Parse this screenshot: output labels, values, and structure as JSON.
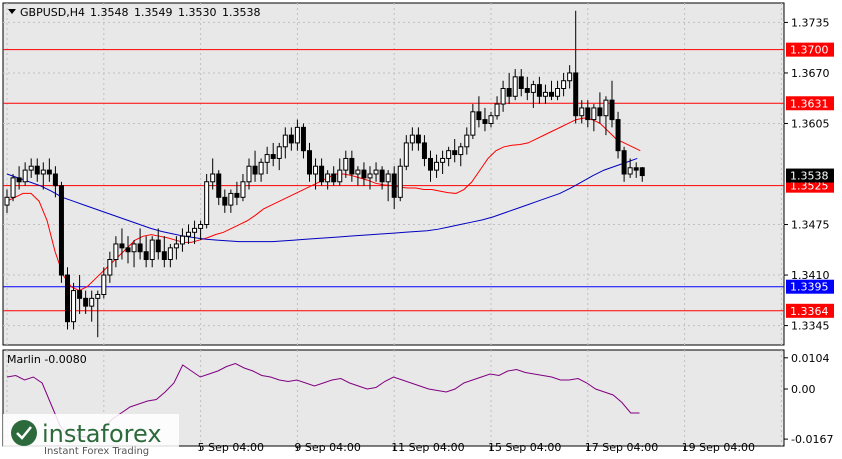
{
  "header": {
    "symbol_label": "GBPUSD,H4",
    "ohlc": [
      "1.3548",
      "1.3549",
      "1.3530",
      "1.3538"
    ]
  },
  "indicator": {
    "label": "Marlin -0.0080"
  },
  "watermark": {
    "brand": "instaforex",
    "tagline": "Instant Forex Trading"
  },
  "colors": {
    "background": "#e8e8e8",
    "bull": "#ffffff",
    "bear": "#000000",
    "red_level": "#ff0000",
    "blue_level": "#0000ff",
    "ma_fast": "#ff0000",
    "ma_slow": "#0000c0",
    "marlin": "#800080"
  },
  "chart_data": {
    "type": "candlestick",
    "x_tick_labels": [
      "5 Sep 04:00",
      "9 Sep 04:00",
      "11 Sep 04:00",
      "15 Sep 04:00",
      "17 Sep 04:00",
      "19 Sep 04:00"
    ],
    "x_tick_index": [
      32,
      48,
      64,
      80,
      96,
      112
    ],
    "y_ticks": [
      1.3735,
      1.367,
      1.3605,
      1.3475,
      1.341,
      1.3345
    ],
    "ylim": [
      1.332,
      1.376
    ],
    "levels": [
      {
        "value": 1.37,
        "label": "1.3700",
        "color": "red"
      },
      {
        "value": 1.3631,
        "label": "1.3631",
        "color": "red"
      },
      {
        "value": 1.3525,
        "label": "1.3525",
        "color": "red"
      },
      {
        "value": 1.3395,
        "label": "1.3395",
        "color": "blue"
      },
      {
        "value": 1.3364,
        "label": "1.3364",
        "color": "red"
      }
    ],
    "current_price": {
      "value": 1.3538,
      "label": "1.3538"
    },
    "candles": [
      [
        1.35,
        1.352,
        1.349,
        1.351
      ],
      [
        1.351,
        1.354,
        1.3505,
        1.3535
      ],
      [
        1.3535,
        1.355,
        1.352,
        1.353
      ],
      [
        1.353,
        1.3555,
        1.3525,
        1.3545
      ],
      [
        1.3545,
        1.356,
        1.3535,
        1.355
      ],
      [
        1.355,
        1.356,
        1.353,
        1.354
      ],
      [
        1.354,
        1.3555,
        1.352,
        1.3545
      ],
      [
        1.3545,
        1.356,
        1.353,
        1.354
      ],
      [
        1.354,
        1.355,
        1.351,
        1.3525
      ],
      [
        1.3525,
        1.353,
        1.34,
        1.341
      ],
      [
        1.341,
        1.342,
        1.334,
        1.335
      ],
      [
        1.335,
        1.34,
        1.334,
        1.339
      ],
      [
        1.339,
        1.341,
        1.336,
        1.338
      ],
      [
        1.338,
        1.339,
        1.336,
        1.337
      ],
      [
        1.337,
        1.339,
        1.335,
        1.338
      ],
      [
        1.338,
        1.339,
        1.333,
        1.3385
      ],
      [
        1.3385,
        1.342,
        1.338,
        1.341
      ],
      [
        1.341,
        1.344,
        1.34,
        1.343
      ],
      [
        1.343,
        1.346,
        1.342,
        1.345
      ],
      [
        1.345,
        1.347,
        1.343,
        1.3445
      ],
      [
        1.3445,
        1.346,
        1.3425,
        1.344
      ],
      [
        1.344,
        1.3455,
        1.342,
        1.345
      ],
      [
        1.345,
        1.347,
        1.343,
        1.344
      ],
      [
        1.344,
        1.346,
        1.342,
        1.343
      ],
      [
        1.343,
        1.346,
        1.342,
        1.3455
      ],
      [
        1.3455,
        1.347,
        1.343,
        1.344
      ],
      [
        1.344,
        1.346,
        1.342,
        1.343
      ],
      [
        1.343,
        1.345,
        1.342,
        1.3445
      ],
      [
        1.3445,
        1.346,
        1.343,
        1.345
      ],
      [
        1.345,
        1.347,
        1.344,
        1.346
      ],
      [
        1.346,
        1.3475,
        1.345,
        1.3465
      ],
      [
        1.3465,
        1.348,
        1.345,
        1.347
      ],
      [
        1.347,
        1.348,
        1.3455,
        1.3475
      ],
      [
        1.3475,
        1.354,
        1.347,
        1.353
      ],
      [
        1.353,
        1.356,
        1.352,
        1.354
      ],
      [
        1.354,
        1.3545,
        1.35,
        1.351
      ],
      [
        1.351,
        1.352,
        1.349,
        1.35
      ],
      [
        1.35,
        1.352,
        1.349,
        1.3515
      ],
      [
        1.3515,
        1.353,
        1.35,
        1.351
      ],
      [
        1.351,
        1.354,
        1.3505,
        1.353
      ],
      [
        1.353,
        1.356,
        1.352,
        1.355
      ],
      [
        1.355,
        1.357,
        1.353,
        1.354
      ],
      [
        1.354,
        1.356,
        1.353,
        1.3555
      ],
      [
        1.3555,
        1.3575,
        1.354,
        1.3565
      ],
      [
        1.3565,
        1.358,
        1.355,
        1.356
      ],
      [
        1.356,
        1.358,
        1.3545,
        1.3575
      ],
      [
        1.3575,
        1.36,
        1.356,
        1.359
      ],
      [
        1.359,
        1.36,
        1.357,
        1.358
      ],
      [
        1.358,
        1.361,
        1.357,
        1.36
      ],
      [
        1.36,
        1.3605,
        1.356,
        1.357
      ],
      [
        1.357,
        1.358,
        1.353,
        1.354
      ],
      [
        1.354,
        1.356,
        1.352,
        1.355
      ],
      [
        1.355,
        1.356,
        1.3525,
        1.353
      ],
      [
        1.353,
        1.3545,
        1.352,
        1.354
      ],
      [
        1.354,
        1.355,
        1.3525,
        1.353
      ],
      [
        1.353,
        1.356,
        1.3525,
        1.3545
      ],
      [
        1.3545,
        1.357,
        1.3535,
        1.356
      ],
      [
        1.356,
        1.357,
        1.353,
        1.354
      ],
      [
        1.354,
        1.355,
        1.3525,
        1.3545
      ],
      [
        1.3545,
        1.3555,
        1.3525,
        1.3535
      ],
      [
        1.3535,
        1.355,
        1.352,
        1.354
      ],
      [
        1.354,
        1.3555,
        1.353,
        1.3545
      ],
      [
        1.3545,
        1.355,
        1.352,
        1.353
      ],
      [
        1.353,
        1.3545,
        1.3505,
        1.354
      ],
      [
        1.354,
        1.355,
        1.3495,
        1.351
      ],
      [
        1.351,
        1.356,
        1.3505,
        1.355
      ],
      [
        1.355,
        1.359,
        1.3545,
        1.358
      ],
      [
        1.358,
        1.36,
        1.357,
        1.359
      ],
      [
        1.359,
        1.36,
        1.357,
        1.358
      ],
      [
        1.358,
        1.359,
        1.355,
        1.356
      ],
      [
        1.356,
        1.357,
        1.353,
        1.3545
      ],
      [
        1.3545,
        1.3565,
        1.3535,
        1.3555
      ],
      [
        1.3555,
        1.357,
        1.354,
        1.356
      ],
      [
        1.356,
        1.3575,
        1.355,
        1.357
      ],
      [
        1.357,
        1.3585,
        1.3555,
        1.3565
      ],
      [
        1.3565,
        1.358,
        1.355,
        1.3575
      ],
      [
        1.3575,
        1.36,
        1.3565,
        1.359
      ],
      [
        1.359,
        1.363,
        1.3585,
        1.362
      ],
      [
        1.362,
        1.364,
        1.36,
        1.361
      ],
      [
        1.361,
        1.3625,
        1.3595,
        1.3605
      ],
      [
        1.3605,
        1.362,
        1.36,
        1.3615
      ],
      [
        1.3615,
        1.364,
        1.361,
        1.363
      ],
      [
        1.363,
        1.366,
        1.362,
        1.365
      ],
      [
        1.365,
        1.367,
        1.363,
        1.364
      ],
      [
        1.364,
        1.3675,
        1.3635,
        1.3665
      ],
      [
        1.3665,
        1.3675,
        1.364,
        1.365
      ],
      [
        1.365,
        1.3665,
        1.3635,
        1.3645
      ],
      [
        1.3645,
        1.366,
        1.3625,
        1.3655
      ],
      [
        1.3655,
        1.3665,
        1.363,
        1.364
      ],
      [
        1.364,
        1.3655,
        1.363,
        1.3645
      ],
      [
        1.3645,
        1.366,
        1.3635,
        1.364
      ],
      [
        1.364,
        1.366,
        1.3635,
        1.365
      ],
      [
        1.365,
        1.367,
        1.364,
        1.366
      ],
      [
        1.366,
        1.368,
        1.365,
        1.367
      ],
      [
        1.367,
        1.375,
        1.3605,
        1.3615
      ],
      [
        1.3615,
        1.3635,
        1.3605,
        1.3625
      ],
      [
        1.3625,
        1.3635,
        1.36,
        1.361
      ],
      [
        1.361,
        1.363,
        1.3595,
        1.3625
      ],
      [
        1.3625,
        1.3645,
        1.3605,
        1.3615
      ],
      [
        1.3615,
        1.364,
        1.359,
        1.3635
      ],
      [
        1.3635,
        1.366,
        1.36,
        1.361
      ],
      [
        1.361,
        1.362,
        1.356,
        1.357
      ],
      [
        1.357,
        1.3575,
        1.353,
        1.354
      ],
      [
        1.354,
        1.356,
        1.3535,
        1.3548
      ],
      [
        1.3548,
        1.3555,
        1.3535,
        1.3545
      ],
      [
        1.3548,
        1.3549,
        1.353,
        1.3538
      ]
    ],
    "ma_fast": [
      1.3505,
      1.351,
      1.3515,
      1.3515,
      1.3505,
      1.348,
      1.344,
      1.341,
      1.3395,
      1.339,
      1.3395,
      1.3405,
      1.3415,
      1.3425,
      1.3435,
      1.3445,
      1.3455,
      1.346,
      1.3462,
      1.346,
      1.3458,
      1.3455,
      1.3452,
      1.3452,
      1.3455,
      1.3458,
      1.3462,
      1.3465,
      1.347,
      1.3475,
      1.348,
      1.3487,
      1.3495,
      1.35,
      1.3505,
      1.351,
      1.3515,
      1.352,
      1.3525,
      1.353,
      1.3535,
      1.354,
      1.354,
      1.3538,
      1.3535,
      1.3532,
      1.3528,
      1.3526,
      1.3525,
      1.3523,
      1.3522,
      1.3522,
      1.352,
      1.352,
      1.3518,
      1.3516,
      1.3515,
      1.352,
      1.353,
      1.3545,
      1.356,
      1.357,
      1.3575,
      1.3577,
      1.3578,
      1.358,
      1.3585,
      1.359,
      1.3595,
      1.36,
      1.3605,
      1.361,
      1.3612,
      1.361,
      1.3605,
      1.3595,
      1.3585,
      1.358,
      1.3575,
      1.357
    ],
    "ma_fast_start": 0,
    "ma_slow": [
      1.354,
      1.3535,
      1.353,
      1.3525,
      1.3518,
      1.351,
      1.3505,
      1.35,
      1.3495,
      1.349,
      1.3485,
      1.348,
      1.3475,
      1.347,
      1.3466,
      1.3463,
      1.346,
      1.3458,
      1.3456,
      1.3455,
      1.3454,
      1.3453,
      1.3453,
      1.3453,
      1.3453,
      1.3454,
      1.3455,
      1.3456,
      1.3457,
      1.3458,
      1.3459,
      1.346,
      1.3461,
      1.3462,
      1.3463,
      1.3464,
      1.3465,
      1.3466,
      1.3467,
      1.3469,
      1.3472,
      1.3475,
      1.3478,
      1.3481,
      1.3485,
      1.349,
      1.3495,
      1.35,
      1.3505,
      1.351,
      1.3515,
      1.3522,
      1.353,
      1.3538,
      1.3545,
      1.355,
      1.3555,
      1.356
    ],
    "marlin": {
      "label": "Marlin",
      "current": -0.008,
      "y_ticks": [
        0.0104,
        0.0,
        -0.0167
      ],
      "ylim": [
        -0.019,
        0.013
      ],
      "values": [
        0.004,
        0.0045,
        0.003,
        0.004,
        0.002,
        -0.005,
        -0.012,
        -0.016,
        -0.0155,
        -0.016,
        -0.015,
        -0.013,
        -0.01,
        -0.008,
        -0.006,
        -0.005,
        -0.004,
        -0.0035,
        -0.001,
        0.002,
        0.008,
        0.006,
        0.004,
        0.005,
        0.006,
        0.0075,
        0.0085,
        0.007,
        0.006,
        0.0045,
        0.004,
        0.003,
        0.0025,
        0.003,
        0.002,
        0.001,
        0.002,
        0.003,
        0.0035,
        0.002,
        0.001,
        0.0,
        0.0005,
        0.0025,
        0.004,
        0.003,
        0.002,
        0.001,
        0.0,
        -0.0005,
        -0.001,
        0.0,
        0.002,
        0.003,
        0.004,
        0.005,
        0.0045,
        0.006,
        0.0065,
        0.0055,
        0.005,
        0.0045,
        0.004,
        0.003,
        0.003,
        0.0035,
        0.002,
        0.0,
        -0.001,
        -0.002,
        -0.0045,
        -0.008,
        -0.008
      ]
    }
  }
}
